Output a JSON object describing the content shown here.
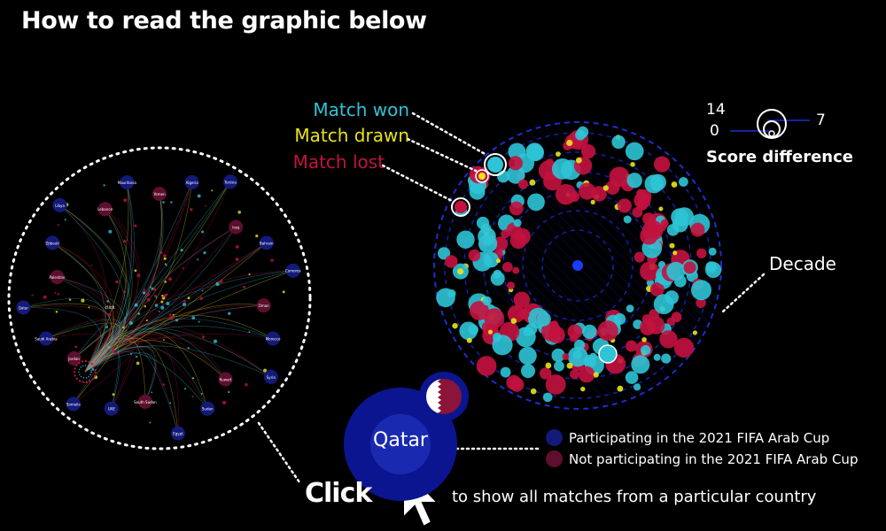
{
  "title": "How to read the graphic below",
  "labels": {
    "won": "Match won",
    "drawn": "Match drawn",
    "lost": "Match lost",
    "decade": "Decade"
  },
  "score_difference": {
    "title": "Score difference",
    "max": "14",
    "min": "0",
    "mid": "7"
  },
  "country_example": "Qatar",
  "legend": {
    "participating": "Participating in the 2021 FIFA Arab Cup",
    "not_participating": "Not participating in the 2021 FIFA Arab Cup"
  },
  "click": {
    "label": "Click",
    "description": "to show all matches from a particular country"
  },
  "colors": {
    "won": "#2ec4d6",
    "drawn": "#e8e41a",
    "lost": "#c3123f",
    "participating": "#141a7a",
    "not_participating": "#5e0e2e"
  },
  "network_nodes": [
    "Yemen",
    "Algeria",
    "Tunisia",
    "Iraq",
    "Bahrain",
    "Comoros",
    "Oman",
    "Morocco",
    "Syria",
    "Kuwait",
    "Sudan",
    "Egypt",
    "South Sudan",
    "UAE",
    "Somalia",
    "Jordan",
    "Saudi Arabia",
    "Qatar",
    "Palestine",
    "Djibouti",
    "Libya",
    "Lebanon",
    "Mauritania"
  ],
  "network_center": "click"
}
